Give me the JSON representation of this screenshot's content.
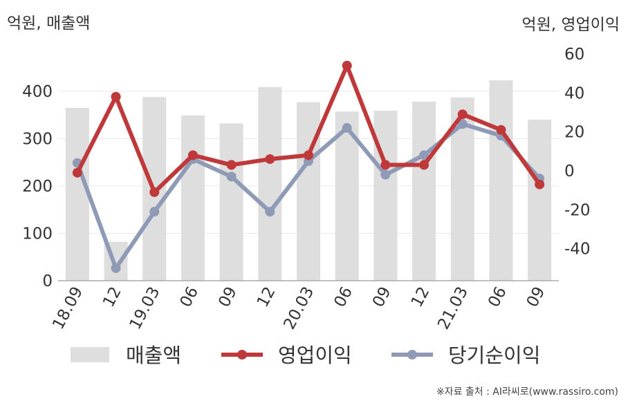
{
  "left_axis_title": "억원, 매출액",
  "right_axis_title": "억원, 영업이익",
  "source": "※자료 출처 : AI라씨로(www.rassiro.com)",
  "colors": {
    "bar": "#dedede",
    "operating_profit": "#c0393a",
    "net_profit": "#8f9bb6",
    "gridline": "#e8e8e8",
    "axis": "#aaaaaa",
    "text": "#333333"
  },
  "chart_data": {
    "type": "bar",
    "categories": [
      "18.09",
      "12",
      "19.03",
      "06",
      "09",
      "12",
      "20.03",
      "06",
      "09",
      "12",
      "21.03",
      "06",
      "09"
    ],
    "series": [
      {
        "name": "매출액",
        "type": "bar",
        "axis": "left",
        "values": [
          365,
          82,
          388,
          349,
          332,
          409,
          377,
          357,
          359,
          378,
          387,
          423,
          340
        ]
      },
      {
        "name": "영업이익",
        "type": "line",
        "axis": "right",
        "values": [
          -1,
          38,
          -11,
          8,
          3,
          6,
          8,
          54,
          3,
          3,
          29,
          21,
          -7
        ]
      },
      {
        "name": "당기순이익",
        "type": "line",
        "axis": "right",
        "values": [
          4,
          -50,
          -21,
          6,
          -3,
          -21,
          5,
          22,
          -2,
          8,
          24,
          18,
          -4
        ]
      }
    ],
    "left_axis": {
      "ticks": [
        0,
        100,
        200,
        300,
        400
      ],
      "range": [
        0,
        470
      ]
    },
    "right_axis": {
      "ticks": [
        -40,
        -20,
        0,
        20,
        40,
        60
      ],
      "range": [
        -57,
        61
      ]
    },
    "legend_position": "bottom",
    "grid": true
  }
}
